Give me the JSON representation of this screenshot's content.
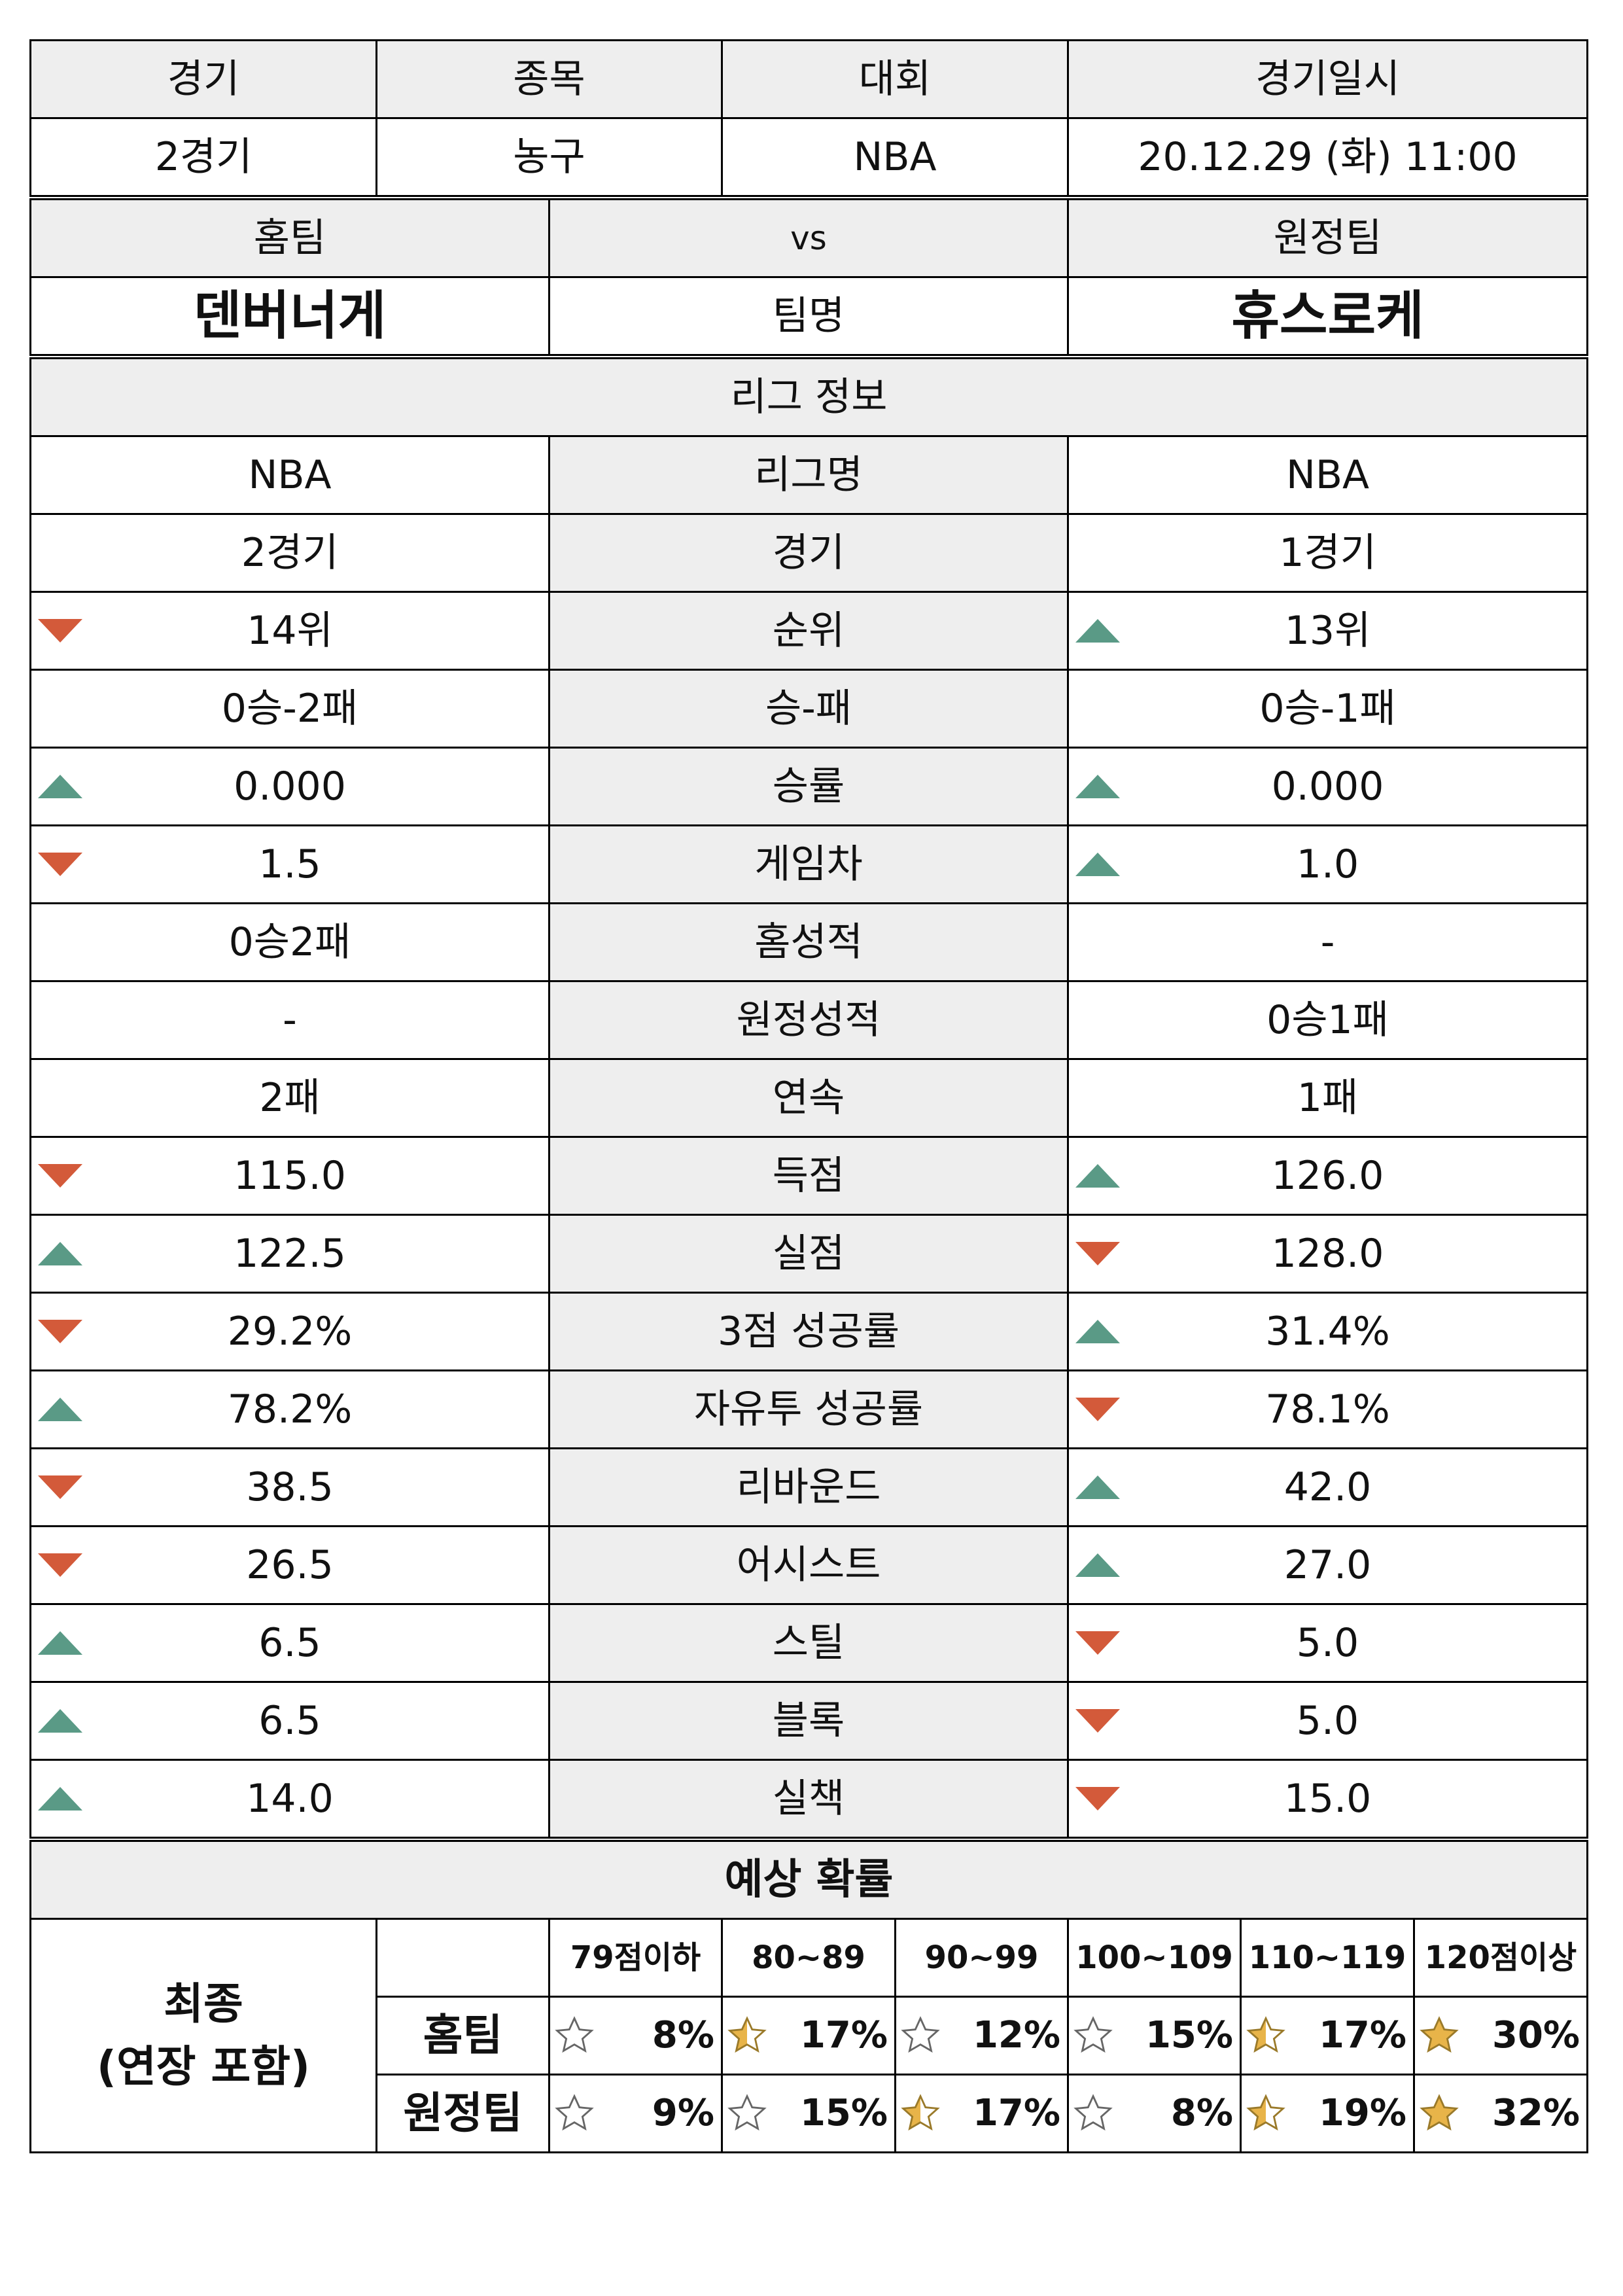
{
  "header": {
    "labels": [
      "경기",
      "종목",
      "대회",
      "경기일시"
    ],
    "values": [
      "2경기",
      "농구",
      "NBA",
      "20.12.29 (화) 11:00"
    ]
  },
  "teams": {
    "home_label": "홈팀",
    "vs_label": "vs",
    "away_label": "원정팀",
    "home_name": "덴버너게",
    "name_label": "팀명",
    "away_name": "휴스로케"
  },
  "league_section_title": "리그 정보",
  "stats": [
    {
      "label": "리그명",
      "home": "NBA",
      "away": "NBA",
      "home_trend": "",
      "away_trend": ""
    },
    {
      "label": "경기",
      "home": "2경기",
      "away": "1경기",
      "home_trend": "",
      "away_trend": ""
    },
    {
      "label": "순위",
      "home": "14위",
      "away": "13위",
      "home_trend": "down",
      "away_trend": "up"
    },
    {
      "label": "승-패",
      "home": "0승-2패",
      "away": "0승-1패",
      "home_trend": "",
      "away_trend": ""
    },
    {
      "label": "승률",
      "home": "0.000",
      "away": "0.000",
      "home_trend": "up",
      "away_trend": "up"
    },
    {
      "label": "게임차",
      "home": "1.5",
      "away": "1.0",
      "home_trend": "down",
      "away_trend": "up"
    },
    {
      "label": "홈성적",
      "home": "0승2패",
      "away": "-",
      "home_trend": "",
      "away_trend": ""
    },
    {
      "label": "원정성적",
      "home": "-",
      "away": "0승1패",
      "home_trend": "",
      "away_trend": ""
    },
    {
      "label": "연속",
      "home": "2패",
      "away": "1패",
      "home_trend": "",
      "away_trend": ""
    },
    {
      "label": "득점",
      "home": "115.0",
      "away": "126.0",
      "home_trend": "down",
      "away_trend": "up"
    },
    {
      "label": "실점",
      "home": "122.5",
      "away": "128.0",
      "home_trend": "up",
      "away_trend": "down"
    },
    {
      "label": "3점 성공률",
      "home": "29.2%",
      "away": "31.4%",
      "home_trend": "down",
      "away_trend": "up"
    },
    {
      "label": "자유투 성공률",
      "home": "78.2%",
      "away": "78.1%",
      "home_trend": "up",
      "away_trend": "down"
    },
    {
      "label": "리바운드",
      "home": "38.5",
      "away": "42.0",
      "home_trend": "down",
      "away_trend": "up"
    },
    {
      "label": "어시스트",
      "home": "26.5",
      "away": "27.0",
      "home_trend": "down",
      "away_trend": "up"
    },
    {
      "label": "스틸",
      "home": "6.5",
      "away": "5.0",
      "home_trend": "up",
      "away_trend": "down"
    },
    {
      "label": "블록",
      "home": "6.5",
      "away": "5.0",
      "home_trend": "up",
      "away_trend": "down"
    },
    {
      "label": "실책",
      "home": "14.0",
      "away": "15.0",
      "home_trend": "up",
      "away_trend": "down"
    }
  ],
  "prediction": {
    "title": "예상 확률",
    "final_label_line1": "최종",
    "final_label_line2": "(연장 포함)",
    "ranges": [
      "79점이하",
      "80~89",
      "90~99",
      "100~109",
      "110~119",
      "120점이상"
    ],
    "rows": [
      {
        "label": "홈팀",
        "values": [
          "8%",
          "17%",
          "12%",
          "15%",
          "17%",
          "30%"
        ],
        "stars": [
          0,
          0.5,
          0,
          0,
          0.5,
          1
        ]
      },
      {
        "label": "원정팀",
        "values": [
          "9%",
          "15%",
          "17%",
          "8%",
          "19%",
          "32%"
        ],
        "stars": [
          0,
          0,
          0.5,
          0,
          0.5,
          1
        ]
      }
    ]
  },
  "colors": {
    "down": "#d35a3a",
    "up": "#5a9a86",
    "star": "#e8b449",
    "header_bg": "#eeeeee"
  }
}
